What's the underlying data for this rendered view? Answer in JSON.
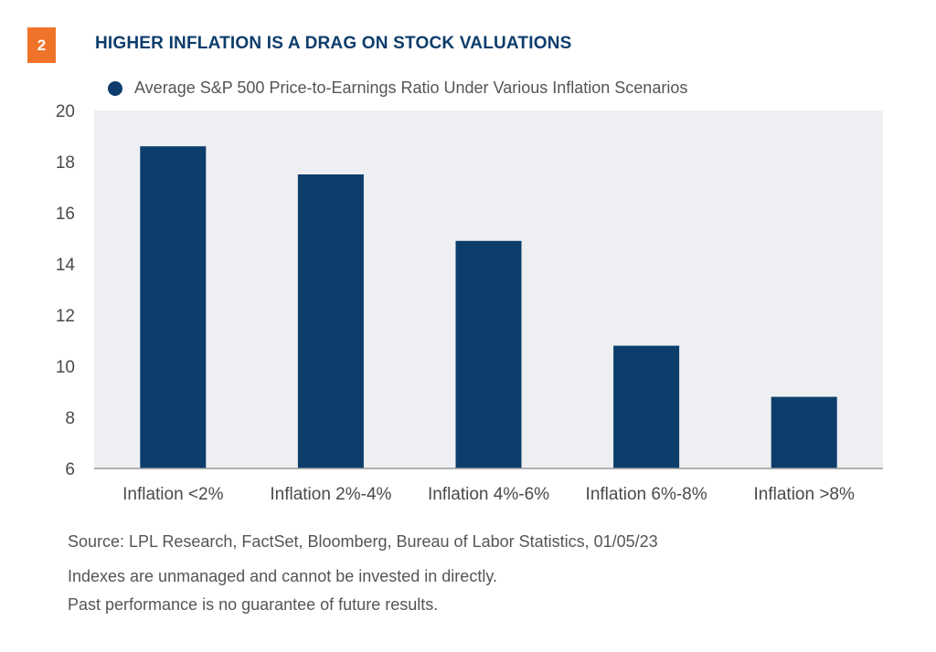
{
  "badge": "2",
  "title": "HIGHER INFLATION IS A DRAG ON STOCK VALUATIONS",
  "colors": {
    "bar": "#0c3d6b",
    "plot_bg": "#edeff2",
    "accent": "#f0732a"
  },
  "chart_data": {
    "type": "bar",
    "categories": [
      "Inflation <2%",
      "Inflation 2%-4%",
      "Inflation 4%-6%",
      "Inflation 6%-8%",
      "Inflation >8%"
    ],
    "series": [
      {
        "name": "Average S&P 500 Price-to-Earnings Ratio Under Various Inflation Scenarios",
        "values": [
          18.6,
          17.5,
          14.9,
          10.8,
          8.8
        ]
      }
    ],
    "ylim": [
      6,
      20
    ],
    "yticks": [
      6,
      8,
      10,
      12,
      14,
      16,
      18,
      20
    ],
    "title": "",
    "xlabel": "",
    "ylabel": "",
    "grid": false,
    "legend_position": "top-left"
  },
  "footer": {
    "source": "Source: LPL Research, FactSet, Bloomberg, Bureau of Labor Statistics,  01/05/23",
    "note1": "Indexes are unmanaged and cannot be invested in directly.",
    "note2": "Past performance is no guarantee of future results."
  }
}
